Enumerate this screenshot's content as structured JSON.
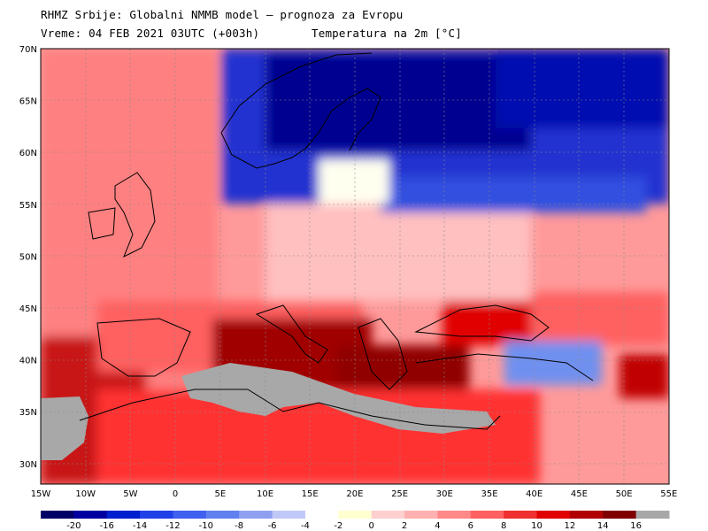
{
  "header": {
    "line1": "RHMZ Srbije: Globalni NMMB model – prognoza za Evropu",
    "line2": "Vreme: 04 FEB 2021 03UTC (+003h)",
    "line3": "Temperatura na 2m [°C]"
  },
  "axes": {
    "lat_labels": [
      "70N",
      "65N",
      "60N",
      "55N",
      "50N",
      "45N",
      "40N",
      "35N",
      "30N"
    ],
    "lon_labels": [
      "15W",
      "10W",
      "5W",
      "0",
      "5E",
      "10E",
      "15E",
      "20E",
      "25E",
      "30E",
      "35E",
      "40E",
      "45E",
      "50E",
      "55E"
    ]
  },
  "colorbar": {
    "tick_labels": [
      "-20",
      "-16",
      "-14",
      "-12",
      "-10",
      "-8",
      "-6",
      "-4",
      "-2",
      "0",
      "2",
      "4",
      "6",
      "8",
      "10",
      "12",
      "14",
      "16"
    ],
    "colors": [
      "#000066",
      "#0000a0",
      "#0020d0",
      "#2040e8",
      "#4060f0",
      "#6080f0",
      "#90a0f0",
      "#c0c8f8",
      "#ffffff",
      "#ffffd0",
      "#ffd0d0",
      "#ffb0b0",
      "#ff8888",
      "#ff6060",
      "#f03030",
      "#e00000",
      "#b00000",
      "#800000",
      "#a8a8a8"
    ]
  },
  "palette": {
    "land_mask": "#a8a8a8",
    "frame": "#000000"
  }
}
